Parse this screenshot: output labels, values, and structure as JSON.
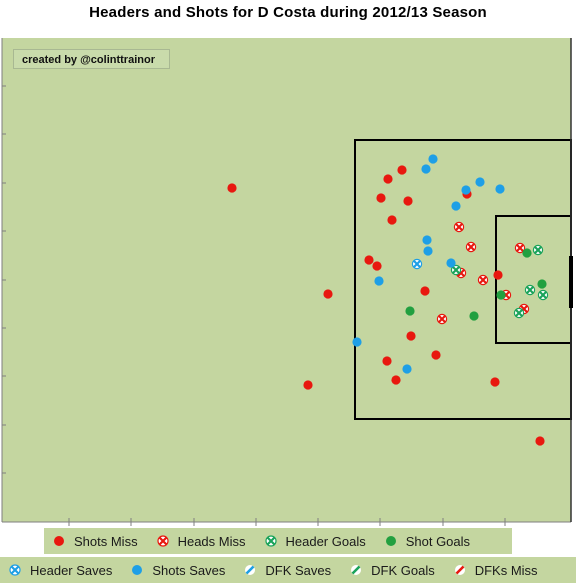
{
  "chart_data": {
    "type": "scatter",
    "title": "Headers and Shots for D Costa during 2012/13 Season",
    "annotation": "created by @colinttrainor",
    "pitch_color": "#c4d6a0",
    "series": [
      {
        "name": "Shots Miss",
        "style": "solid",
        "color": "#e8180f",
        "points": [
          [
            232,
            188
          ],
          [
            388,
            179
          ],
          [
            402,
            170
          ],
          [
            381,
            198
          ],
          [
            408,
            201
          ],
          [
            392,
            220
          ],
          [
            369,
            260
          ],
          [
            377,
            266
          ],
          [
            328,
            294
          ],
          [
            425,
            291
          ],
          [
            411,
            336
          ],
          [
            387,
            361
          ],
          [
            436,
            355
          ],
          [
            396,
            380
          ],
          [
            308,
            385
          ],
          [
            495,
            382
          ],
          [
            540,
            441
          ],
          [
            467,
            194
          ],
          [
            498,
            275
          ]
        ]
      },
      {
        "name": "Heads Miss",
        "style": "cross",
        "color": "#e8180f",
        "points": [
          [
            459,
            227
          ],
          [
            471,
            247
          ],
          [
            520,
            248
          ],
          [
            461,
            273
          ],
          [
            483,
            280
          ],
          [
            506,
            295
          ],
          [
            442,
            319
          ],
          [
            524,
            309
          ]
        ]
      },
      {
        "name": "Header Goals",
        "style": "cross",
        "color": "#1aa35a",
        "points": [
          [
            538,
            250
          ],
          [
            530,
            290
          ],
          [
            543,
            295
          ],
          [
            519,
            313
          ],
          [
            456,
            270
          ]
        ]
      },
      {
        "name": "Shot Goals",
        "style": "solid",
        "color": "#22a040",
        "points": [
          [
            527,
            253
          ],
          [
            542,
            284
          ],
          [
            501,
            295
          ],
          [
            410,
            311
          ],
          [
            474,
            316
          ]
        ]
      },
      {
        "name": "Header Saves",
        "style": "cross",
        "color": "#1e9fe6",
        "points": [
          [
            417,
            264
          ]
        ]
      },
      {
        "name": "Shots Saves",
        "style": "solid",
        "color": "#1e9fe6",
        "points": [
          [
            433,
            159
          ],
          [
            426,
            169
          ],
          [
            466,
            190
          ],
          [
            480,
            182
          ],
          [
            500,
            189
          ],
          [
            456,
            206
          ],
          [
            427,
            240
          ],
          [
            428,
            251
          ],
          [
            451,
            263
          ],
          [
            379,
            281
          ],
          [
            357,
            342
          ],
          [
            407,
            369
          ]
        ]
      },
      {
        "name": "DFK Saves",
        "style": "half",
        "color": "#1e9fe6",
        "points": []
      },
      {
        "name": "DFK Goals",
        "style": "half",
        "color": "#1aa35a",
        "points": []
      },
      {
        "name": "DFKs Miss",
        "style": "half",
        "color": "#e8180f",
        "points": []
      }
    ],
    "legend_rows": [
      [
        "Shots Miss",
        "Heads Miss",
        "Header Goals",
        "Shot Goals"
      ],
      [
        "Header Saves",
        "Shots Saves",
        "DFK Saves",
        "DFK Goals",
        "DFKs Miss"
      ]
    ]
  }
}
